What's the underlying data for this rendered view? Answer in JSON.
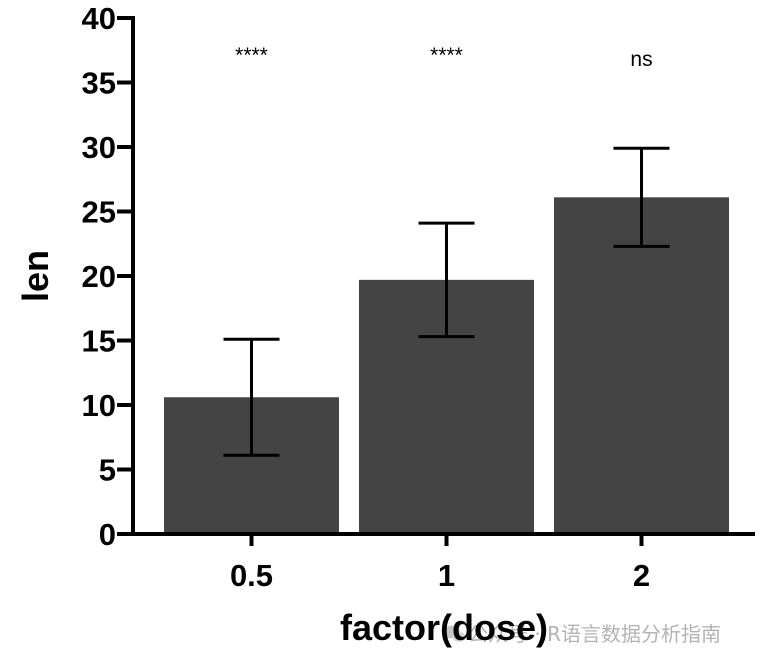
{
  "chart_data": {
    "type": "bar",
    "categories": [
      "0.5",
      "1",
      "2"
    ],
    "values": [
      10.6,
      19.7,
      26.1
    ],
    "error_low": [
      6.1,
      15.3,
      22.3
    ],
    "error_high": [
      15.1,
      24.1,
      29.9
    ],
    "significance": [
      "****",
      "****",
      "ns"
    ],
    "xlabel": "factor(dose)",
    "ylabel": "len",
    "ylim": [
      0,
      40
    ],
    "yticks": [
      0,
      5,
      10,
      15,
      20,
      25,
      30,
      35,
      40
    ],
    "bar_color": "#444444",
    "grid": false
  },
  "watermark": {
    "icon": "wechat-icon",
    "text": "公众号 · R语言数据分析指南"
  }
}
